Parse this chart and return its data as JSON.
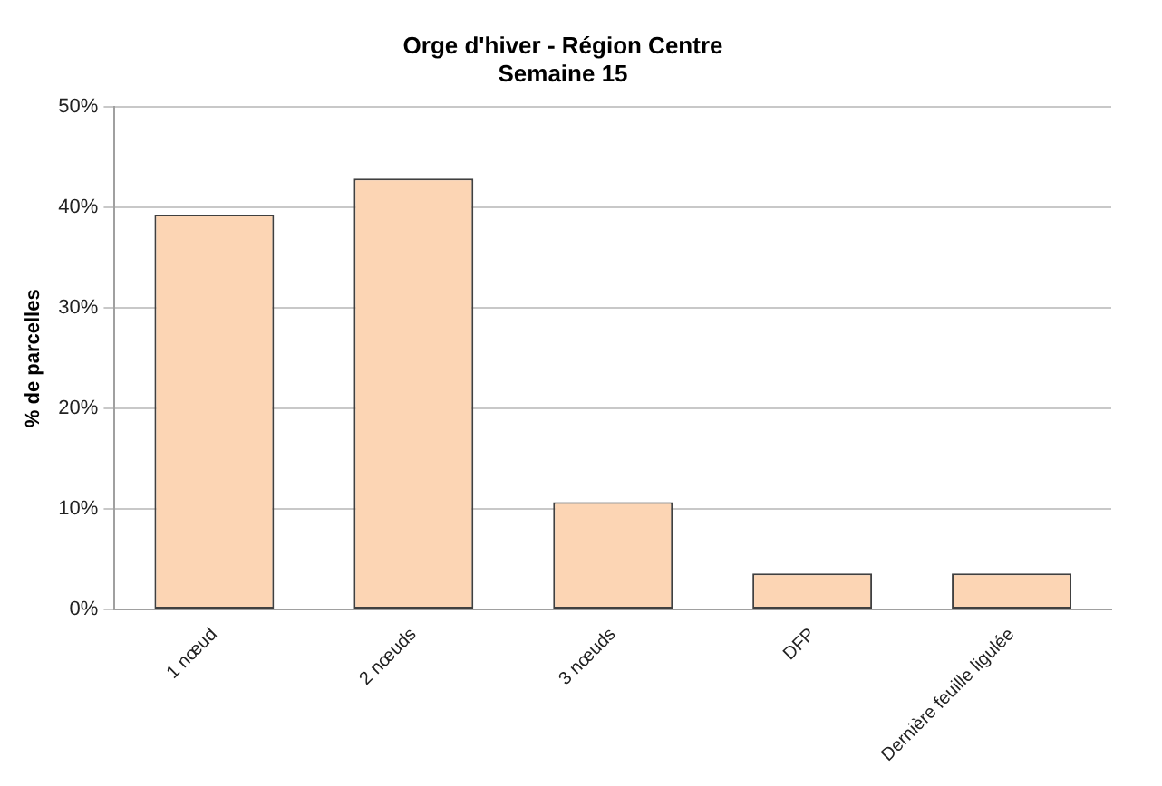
{
  "chart_data": {
    "type": "bar",
    "title": "Orge d'hiver - Région Centre",
    "subtitle": "Semaine 15",
    "ylabel": "% de parcelles",
    "categories": [
      "1 nœud",
      "2 nœuds",
      "3 nœuds",
      "DFP",
      "Dernière feuille ligulée"
    ],
    "values": [
      39.3,
      42.9,
      10.7,
      3.6,
      3.6
    ],
    "color": "#fcd5b4",
    "ylim": [
      0,
      50
    ],
    "yticks": [
      {
        "value": 0,
        "label": "0%"
      },
      {
        "value": 10,
        "label": "10%"
      },
      {
        "value": 20,
        "label": "20%"
      },
      {
        "value": 30,
        "label": "30%"
      },
      {
        "value": 40,
        "label": "40%"
      },
      {
        "value": 50,
        "label": "50%"
      }
    ],
    "grid": "y",
    "legend": false
  }
}
